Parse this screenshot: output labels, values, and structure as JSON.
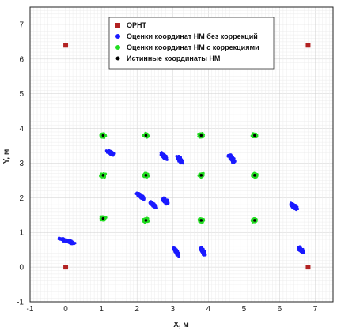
{
  "chart_data": {
    "type": "scatter",
    "xlabel": "X, м",
    "ylabel": "Y, м",
    "xlim": [
      -1,
      7.5
    ],
    "ylim": [
      -1,
      7.5
    ],
    "x_ticks": [
      -1,
      0,
      1,
      2,
      3,
      4,
      5,
      6,
      7
    ],
    "y_ticks": [
      -1,
      0,
      1,
      2,
      3,
      4,
      5,
      6,
      7
    ],
    "grid": "minor",
    "legend_position": "top-center",
    "series": [
      {
        "name": "ОРНТ",
        "color": "#b22222",
        "marker": "square",
        "points": [
          [
            0,
            6.4
          ],
          [
            6.8,
            6.4
          ],
          [
            0,
            0
          ],
          [
            6.8,
            0
          ]
        ]
      },
      {
        "name": "Оценки координат НМ без коррекций",
        "color": "#1a1aff",
        "marker": "cluster",
        "clusters": [
          {
            "center": [
              0.05,
              0.75
            ],
            "spread": [
              0.35,
              0.06
            ],
            "angle": -18
          },
          {
            "center": [
              1.25,
              3.3
            ],
            "spread": [
              0.18,
              0.07
            ],
            "angle": -25
          },
          {
            "center": [
              2.1,
              2.05
            ],
            "spread": [
              0.2,
              0.08
            ],
            "angle": -40
          },
          {
            "center": [
              2.45,
              1.8
            ],
            "spread": [
              0.2,
              0.08
            ],
            "angle": -40
          },
          {
            "center": [
              2.8,
              1.9
            ],
            "spread": [
              0.18,
              0.08
            ],
            "angle": -45
          },
          {
            "center": [
              2.75,
              3.2
            ],
            "spread": [
              0.18,
              0.08
            ],
            "angle": -45
          },
          {
            "center": [
              3.2,
              3.1
            ],
            "spread": [
              0.18,
              0.08
            ],
            "angle": -50
          },
          {
            "center": [
              3.1,
              0.45
            ],
            "spread": [
              0.22,
              0.07
            ],
            "angle": -65
          },
          {
            "center": [
              3.85,
              0.45
            ],
            "spread": [
              0.22,
              0.07
            ],
            "angle": -65
          },
          {
            "center": [
              4.65,
              3.15
            ],
            "spread": [
              0.18,
              0.08
            ],
            "angle": -50
          },
          {
            "center": [
              6.4,
              1.75
            ],
            "spread": [
              0.18,
              0.08
            ],
            "angle": -45
          },
          {
            "center": [
              6.6,
              0.5
            ],
            "spread": [
              0.18,
              0.08
            ],
            "angle": -45
          }
        ]
      },
      {
        "name": "Оценки координат НМ с коррекциями",
        "color": "#22dd22",
        "marker": "cluster",
        "clusters": [
          {
            "center": [
              1.05,
              3.8
            ],
            "spread": [
              0.11,
              0.09
            ],
            "angle": 0
          },
          {
            "center": [
              2.25,
              3.8
            ],
            "spread": [
              0.11,
              0.09
            ],
            "angle": 0
          },
          {
            "center": [
              3.8,
              3.8
            ],
            "spread": [
              0.11,
              0.09
            ],
            "angle": 0
          },
          {
            "center": [
              5.3,
              3.8
            ],
            "spread": [
              0.11,
              0.09
            ],
            "angle": 0
          },
          {
            "center": [
              1.05,
              2.65
            ],
            "spread": [
              0.11,
              0.09
            ],
            "angle": 0
          },
          {
            "center": [
              2.25,
              2.65
            ],
            "spread": [
              0.11,
              0.09
            ],
            "angle": 0
          },
          {
            "center": [
              3.8,
              2.65
            ],
            "spread": [
              0.11,
              0.09
            ],
            "angle": 0
          },
          {
            "center": [
              5.3,
              2.65
            ],
            "spread": [
              0.11,
              0.09
            ],
            "angle": 0
          },
          {
            "center": [
              1.05,
              1.4
            ],
            "spread": [
              0.11,
              0.09
            ],
            "angle": 0
          },
          {
            "center": [
              2.25,
              1.35
            ],
            "spread": [
              0.11,
              0.09
            ],
            "angle": 0
          },
          {
            "center": [
              3.8,
              1.35
            ],
            "spread": [
              0.11,
              0.09
            ],
            "angle": 0
          },
          {
            "center": [
              5.3,
              1.35
            ],
            "spread": [
              0.11,
              0.09
            ],
            "angle": 0
          }
        ]
      },
      {
        "name": "Истинные координаты НМ",
        "color": "#000000",
        "marker": "dot",
        "points": [
          [
            1.05,
            3.8
          ],
          [
            2.25,
            3.8
          ],
          [
            3.8,
            3.8
          ],
          [
            5.3,
            3.8
          ],
          [
            1.05,
            2.65
          ],
          [
            2.25,
            2.65
          ],
          [
            3.8,
            2.65
          ],
          [
            5.3,
            2.65
          ],
          [
            1.05,
            1.4
          ],
          [
            2.25,
            1.35
          ],
          [
            3.8,
            1.35
          ],
          [
            5.3,
            1.35
          ]
        ]
      }
    ]
  }
}
